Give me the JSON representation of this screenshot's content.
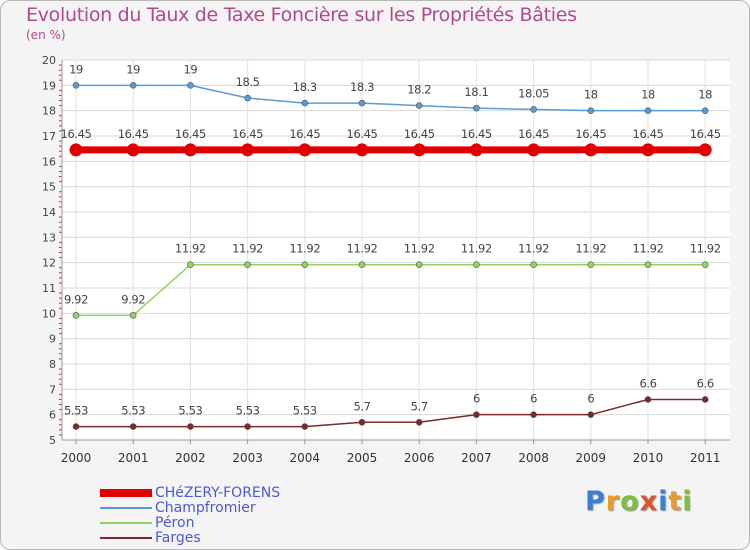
{
  "title": "Evolution du Taux de Taxe Foncière sur les Propriétés Bâties",
  "unit_label": "(en %)",
  "logo": {
    "letters": [
      "P",
      "r",
      "o",
      "x",
      "i",
      "t",
      "i"
    ],
    "colors": [
      "#3a7fd6",
      "#e89a2a",
      "#7bc043",
      "#e0522e",
      "#3a7fd6",
      "#e89a2a",
      "#7bc043"
    ]
  },
  "chart_data": {
    "type": "line",
    "title": "Evolution du Taux de Taxe Foncière sur les Propriétés Bâties",
    "ylabel": "(en %)",
    "xlabel": "",
    "ylim": [
      5,
      20
    ],
    "yticks": [
      "5",
      "6",
      "7",
      "8",
      "9",
      "10",
      "11",
      "12",
      "13",
      "14",
      "15",
      "16",
      "17",
      "18",
      "19",
      "20"
    ],
    "categories": [
      "2000",
      "2001",
      "2002",
      "2003",
      "2004",
      "2005",
      "2006",
      "2007",
      "2008",
      "2009",
      "2010",
      "2011"
    ],
    "legend_position": "bottom-left",
    "series": [
      {
        "name": "CHéZERY-FORENS",
        "color": "#e00000",
        "thick": true,
        "values": [
          16.45,
          16.45,
          16.45,
          16.45,
          16.45,
          16.45,
          16.45,
          16.45,
          16.45,
          16.45,
          16.45,
          16.45
        ],
        "labels": [
          "16.45",
          "16.45",
          "16.45",
          "16.45",
          "16.45",
          "16.45",
          "16.45",
          "16.45",
          "16.45",
          "16.45",
          "16.45",
          "16.45"
        ]
      },
      {
        "name": "Champfromier",
        "color": "#5a9bd5",
        "thick": false,
        "values": [
          19,
          19,
          19,
          18.5,
          18.3,
          18.3,
          18.2,
          18.1,
          18.05,
          18,
          18,
          18
        ],
        "labels": [
          "19",
          "19",
          "19",
          "18.5",
          "18.3",
          "18.3",
          "18.2",
          "18.1",
          "18.05",
          "18",
          "18",
          "18"
        ]
      },
      {
        "name": "Péron",
        "color": "#8fd460",
        "thick": false,
        "values": [
          9.92,
          9.92,
          11.92,
          11.92,
          11.92,
          11.92,
          11.92,
          11.92,
          11.92,
          11.92,
          11.92,
          11.92
        ],
        "labels": [
          "9.92",
          "9.92",
          "11.92",
          "11.92",
          "11.92",
          "11.92",
          "11.92",
          "11.92",
          "11.92",
          "11.92",
          "11.92",
          "11.92"
        ]
      },
      {
        "name": "Farges",
        "color": "#7a2a2a",
        "thick": false,
        "values": [
          5.53,
          5.53,
          5.53,
          5.53,
          5.53,
          5.7,
          5.7,
          6,
          6,
          6,
          6.6,
          6.6
        ],
        "labels": [
          "5.53",
          "5.53",
          "5.53",
          "5.53",
          "5.53",
          "5.7",
          "5.7",
          "6",
          "6",
          "6",
          "6.6",
          "6.6"
        ]
      }
    ]
  }
}
